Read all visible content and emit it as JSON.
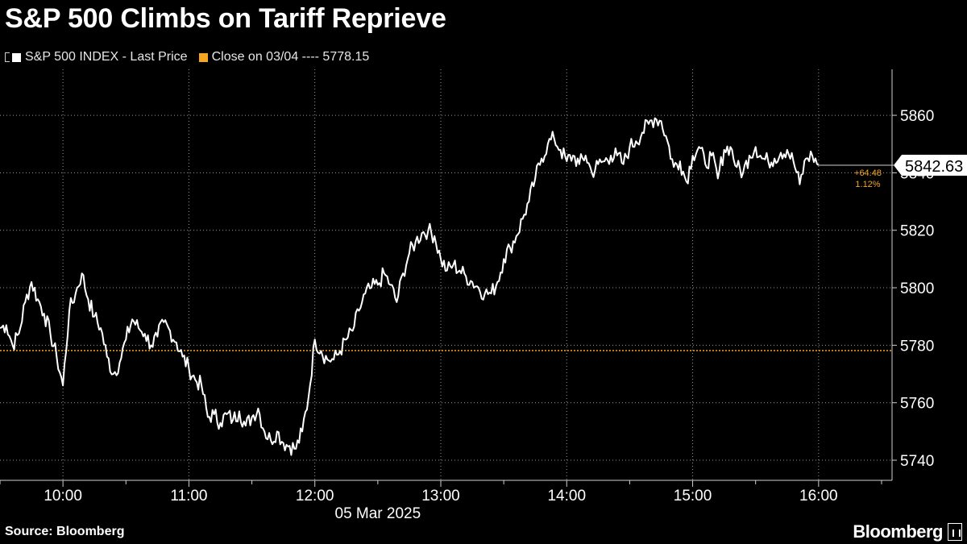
{
  "title": "S&P 500 Climbs on Tariff Reprieve",
  "legend": {
    "series_label": "S&P 500 INDEX - Last Price",
    "reference_label": "Close on 03/04 ---- 5778.15"
  },
  "footer": {
    "source": "Source: Bloomberg",
    "brand": "Bloomberg"
  },
  "colors": {
    "background": "#000000",
    "series": "#ffffff",
    "reference": "#f5a623",
    "grid": "#9a9a9a",
    "axis": "#d0d0d0"
  },
  "chart_data": {
    "type": "line",
    "title": "S&P 500 Climbs on Tariff Reprieve",
    "xlabel": "05 Mar 2025",
    "ylabel": "",
    "x_ticks": [
      "10:00",
      "11:00",
      "12:00",
      "13:00",
      "14:00",
      "15:00",
      "16:00"
    ],
    "y_ticks": [
      5740,
      5760,
      5780,
      5800,
      5820,
      5840,
      5860
    ],
    "ylim": [
      5733,
      5876
    ],
    "xlim": [
      "09:30",
      "16:35"
    ],
    "grid": true,
    "legend_position": "top-left",
    "reference_line": {
      "label": "Close on 03/04",
      "value": 5778.15
    },
    "last_value": {
      "label": "5842.63",
      "value": 5842.63,
      "change": "+64.48",
      "change_pct": "1.12%"
    },
    "series": [
      {
        "name": "S&P 500 INDEX - Last Price",
        "x": [
          "09:30",
          "09:33",
          "09:36",
          "09:39",
          "09:42",
          "09:45",
          "09:48",
          "09:51",
          "09:54",
          "09:57",
          "10:00",
          "10:03",
          "10:06",
          "10:09",
          "10:12",
          "10:15",
          "10:18",
          "10:21",
          "10:24",
          "10:27",
          "10:30",
          "10:33",
          "10:36",
          "10:39",
          "10:42",
          "10:45",
          "10:48",
          "10:51",
          "10:54",
          "10:57",
          "11:00",
          "11:03",
          "11:06",
          "11:09",
          "11:12",
          "11:15",
          "11:18",
          "11:21",
          "11:24",
          "11:27",
          "11:30",
          "11:33",
          "11:36",
          "11:39",
          "11:42",
          "11:45",
          "11:48",
          "11:51",
          "11:54",
          "11:57",
          "12:00",
          "12:03",
          "12:06",
          "12:09",
          "12:12",
          "12:15",
          "12:18",
          "12:21",
          "12:24",
          "12:27",
          "12:30",
          "12:33",
          "12:36",
          "12:39",
          "12:42",
          "12:45",
          "12:48",
          "12:51",
          "12:54",
          "12:57",
          "13:00",
          "13:03",
          "13:06",
          "13:09",
          "13:12",
          "13:15",
          "13:18",
          "13:21",
          "13:24",
          "13:27",
          "13:30",
          "13:33",
          "13:36",
          "13:39",
          "13:42",
          "13:45",
          "13:48",
          "13:51",
          "13:54",
          "13:57",
          "14:00",
          "14:03",
          "14:06",
          "14:09",
          "14:12",
          "14:15",
          "14:18",
          "14:21",
          "14:24",
          "14:27",
          "14:30",
          "14:33",
          "14:36",
          "14:39",
          "14:42",
          "14:45",
          "14:48",
          "14:51",
          "14:54",
          "14:57",
          "15:00",
          "15:03",
          "15:06",
          "15:09",
          "15:12",
          "15:15",
          "15:18",
          "15:21",
          "15:24",
          "15:27",
          "15:30",
          "15:33",
          "15:36",
          "15:39",
          "15:42",
          "15:45",
          "15:48",
          "15:51",
          "15:54",
          "15:57",
          "16:00"
        ],
        "values": [
          5786,
          5787,
          5780,
          5784,
          5795,
          5802,
          5796,
          5791,
          5784,
          5776,
          5766,
          5792,
          5798,
          5805,
          5796,
          5790,
          5786,
          5776,
          5770,
          5774,
          5782,
          5789,
          5786,
          5784,
          5780,
          5783,
          5788,
          5785,
          5781,
          5776,
          5772,
          5768,
          5766,
          5755,
          5756,
          5753,
          5756,
          5754,
          5757,
          5752,
          5755,
          5758,
          5750,
          5747,
          5750,
          5746,
          5745,
          5744,
          5750,
          5762,
          5782,
          5778,
          5775,
          5775,
          5778,
          5782,
          5785,
          5792,
          5798,
          5800,
          5801,
          5805,
          5801,
          5795,
          5805,
          5812,
          5816,
          5819,
          5820,
          5818,
          5810,
          5806,
          5808,
          5806,
          5804,
          5802,
          5800,
          5798,
          5798,
          5802,
          5810,
          5814,
          5818,
          5824,
          5830,
          5838,
          5845,
          5850,
          5852,
          5848,
          5844,
          5846,
          5843,
          5846,
          5840,
          5843,
          5844,
          5846,
          5846,
          5843,
          5849,
          5851,
          5854,
          5857,
          5859,
          5858,
          5851,
          5842,
          5844,
          5837,
          5846,
          5849,
          5843,
          5846,
          5838,
          5848,
          5849,
          5842,
          5840,
          5846,
          5849,
          5845,
          5844,
          5845,
          5847,
          5848,
          5844,
          5836,
          5845,
          5846,
          5842.63
        ]
      }
    ]
  }
}
